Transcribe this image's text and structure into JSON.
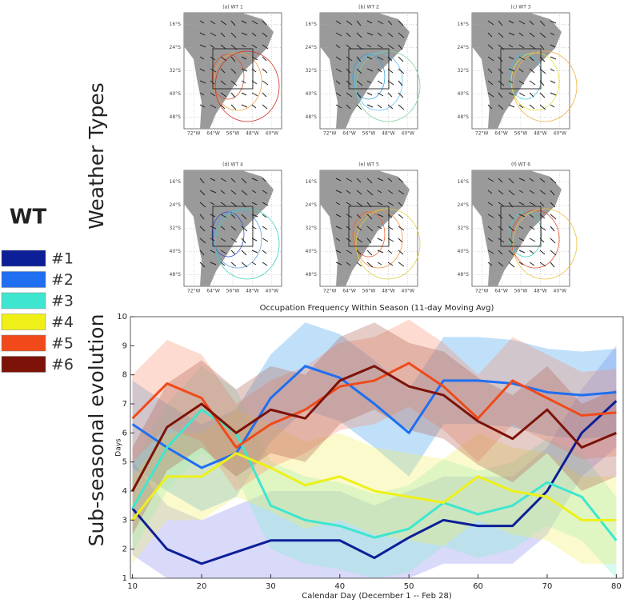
{
  "row_labels": [
    "Weather Types",
    "Sub-seasonal evolution"
  ],
  "maps": {
    "panels": [
      "(a) WT 1",
      "(b) WT 2",
      "(c) WT 3",
      "(d) WT 4",
      "(e) WT 5",
      "(f) WT 6"
    ],
    "lat_labels": [
      "16°S",
      "24°S",
      "32°S",
      "40°S",
      "48°S"
    ],
    "lon_labels": [
      "72°W",
      "64°W",
      "56°W",
      "48°W",
      "40°W"
    ]
  },
  "chart_data": {
    "type": "line",
    "title": "Occupation Frequency Within Season (11-day Moving Avg)",
    "x_label": "Calendar Day (December 1 -- Feb 28)",
    "y_label": "Days",
    "legend_title": "WT",
    "x": [
      10,
      15,
      20,
      25,
      30,
      35,
      40,
      45,
      50,
      55,
      60,
      65,
      70,
      75,
      80
    ],
    "xlim": [
      9.7,
      81
    ],
    "xticks": [
      10,
      20,
      30,
      40,
      50,
      60,
      70,
      80
    ],
    "ylim": [
      1,
      10
    ],
    "yticks": [
      1,
      2,
      3,
      4,
      5,
      6,
      7,
      8,
      9,
      10
    ],
    "series": [
      {
        "name": "#1",
        "color": "#0c1f96",
        "band_color": "#8a8af0",
        "values": [
          3.4,
          2.0,
          1.5,
          1.9,
          2.3,
          2.3,
          2.3,
          1.7,
          2.4,
          3.0,
          2.8,
          2.8,
          4.0,
          6.0,
          7.1
        ],
        "lower": [
          1.8,
          1,
          1,
          1,
          1,
          1,
          1,
          1,
          1,
          1.5,
          1.5,
          1.5,
          2.5,
          4.5,
          5.5
        ],
        "upper": [
          5,
          3.5,
          3,
          3.5,
          4,
          4,
          4,
          3.5,
          4,
          4.5,
          4.5,
          4.5,
          5.5,
          7.5,
          9
        ]
      },
      {
        "name": "#2",
        "color": "#1f6ff0",
        "band_color": "#3aa0f0",
        "values": [
          6.3,
          5.5,
          4.8,
          5.3,
          7.2,
          8.3,
          7.9,
          7.0,
          6.0,
          7.8,
          7.8,
          7.7,
          7.4,
          7.3,
          7.4
        ],
        "lower": [
          4.8,
          4,
          3.3,
          3.8,
          5.7,
          6.8,
          6.4,
          5.5,
          4.5,
          6.3,
          6.3,
          6.2,
          5.9,
          5.8,
          5.9
        ],
        "upper": [
          7.8,
          7,
          6.3,
          6.8,
          8.7,
          9.8,
          9.4,
          8.5,
          7.5,
          9.3,
          9.3,
          9.2,
          8.9,
          8.8,
          8.9
        ]
      },
      {
        "name": "#3",
        "color": "#3fe6cf",
        "band_color": "#7ff0d0",
        "values": [
          3.4,
          5.5,
          6.8,
          6.0,
          3.5,
          3.0,
          2.8,
          2.4,
          2.7,
          3.6,
          3.2,
          3.5,
          4.3,
          3.8,
          2.3
        ],
        "lower": [
          1.9,
          4,
          5.3,
          4.5,
          2,
          1.5,
          1.3,
          1,
          1.2,
          2.1,
          1.7,
          2,
          2.8,
          2.3,
          1
        ],
        "upper": [
          4.9,
          7,
          8.3,
          7.5,
          5,
          4.5,
          4.3,
          3.9,
          4.2,
          5.1,
          4.7,
          5,
          5.8,
          5.3,
          3.8
        ]
      },
      {
        "name": "#4",
        "color": "#eef018",
        "band_color": "#f4f060",
        "values": [
          3.0,
          4.5,
          4.5,
          5.3,
          4.8,
          4.2,
          4.5,
          4.0,
          3.8,
          3.6,
          4.5,
          4.0,
          3.8,
          3.0,
          3.0
        ],
        "lower": [
          1.5,
          3,
          3,
          3.8,
          3.3,
          2.7,
          3,
          2.5,
          2.3,
          2.1,
          3,
          2.5,
          2.3,
          1.5,
          1.5
        ],
        "upper": [
          4.5,
          6,
          6,
          6.8,
          6.3,
          5.7,
          6,
          5.5,
          5.3,
          5.1,
          6,
          5.5,
          5.3,
          4.5,
          4.5
        ]
      },
      {
        "name": "#5",
        "color": "#f04a1a",
        "band_color": "#f89070",
        "values": [
          6.5,
          7.7,
          7.2,
          5.5,
          6.3,
          6.8,
          7.6,
          7.8,
          8.4,
          7.6,
          6.5,
          7.8,
          7.2,
          6.6,
          6.7
        ],
        "lower": [
          5,
          6.2,
          5.7,
          4,
          4.8,
          5.3,
          6.1,
          6.3,
          6.9,
          6.1,
          5,
          6.3,
          5.7,
          5.1,
          5.2
        ],
        "upper": [
          8,
          9.2,
          8.7,
          7,
          7.8,
          8.3,
          9.1,
          9.3,
          9.9,
          9.1,
          8,
          9.3,
          8.7,
          8.1,
          8.2
        ]
      },
      {
        "name": "#6",
        "color": "#7c1208",
        "band_color": "#b06050",
        "values": [
          4.0,
          6.2,
          7.0,
          6.0,
          6.8,
          6.5,
          7.8,
          8.3,
          7.6,
          7.3,
          6.4,
          5.8,
          6.8,
          5.5,
          6.0
        ],
        "lower": [
          2.5,
          4.7,
          5.5,
          4.5,
          5.3,
          5,
          6.3,
          6.8,
          6.1,
          5.8,
          4.9,
          4.3,
          5.3,
          4,
          4.5
        ],
        "upper": [
          5.5,
          7.7,
          8.5,
          7.5,
          8.3,
          8,
          9.3,
          9.8,
          9.1,
          8.8,
          7.9,
          7.3,
          8.3,
          7,
          7.5
        ]
      }
    ]
  }
}
